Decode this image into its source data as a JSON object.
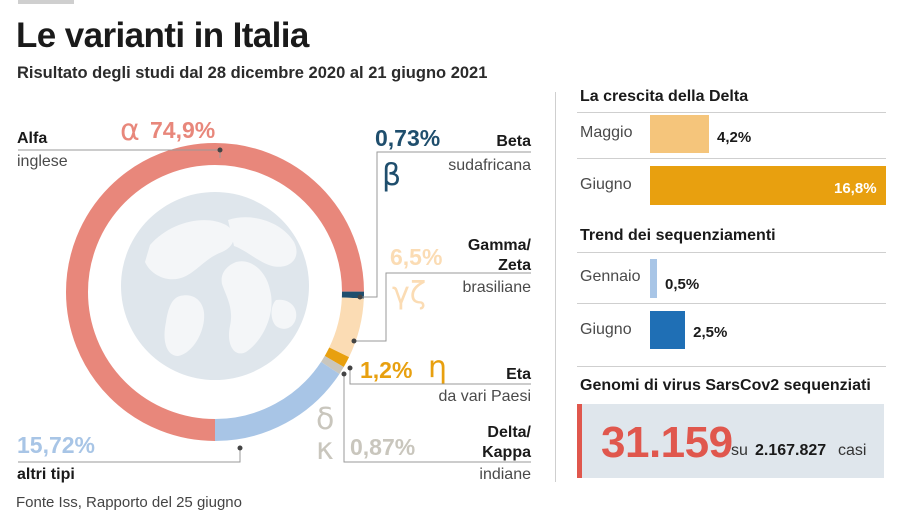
{
  "title": "Le varianti in Italia",
  "subtitle": "Risultato degli studi dal 28 dicembre 2020 al 21 giugno 2021",
  "footer": "Fonte Iss, Rapporto del 25 giugno",
  "colors": {
    "alfa": "#e8877b",
    "beta": "#1f4e6d",
    "gamma": "#fbdcb4",
    "eta": "#e8a00f",
    "delta": "#c9c6bd",
    "altri": "#a8c5e6",
    "delta_bar_light": "#f5c57b",
    "delta_bar_dark": "#e8a00f",
    "seq_light": "#a8c5e6",
    "seq_dark": "#1f6fb5",
    "accent_red": "#e0574d"
  },
  "variants": {
    "alfa": {
      "name": "Alfa",
      "origin": "inglese",
      "pct": "74,9%",
      "greek": "α"
    },
    "beta": {
      "name": "Beta",
      "origin": "sudafricana",
      "pct": "0,73%",
      "greek": "β"
    },
    "gamma": {
      "name": "Gamma/",
      "name2": "Zeta",
      "origin": "brasiliane",
      "pct": "6,5%",
      "greek": "γζ"
    },
    "eta": {
      "name": "Eta",
      "origin": "da vari Paesi",
      "pct": "1,2%",
      "greek": "η"
    },
    "delta": {
      "name": "Delta/",
      "name2": "Kappa",
      "origin": "indiane",
      "pct": "0,87%",
      "greek": "δ",
      "greek2": "κ"
    },
    "altri": {
      "name": "altri tipi",
      "pct": "15,72%"
    }
  },
  "chart_data": [
    {
      "type": "pie",
      "categories": [
        "Alfa",
        "Beta",
        "Gamma/Zeta",
        "Eta",
        "Delta/Kappa",
        "altri tipi"
      ],
      "values": [
        74.9,
        0.73,
        6.5,
        1.2,
        0.87,
        15.72
      ],
      "labels": [
        "74,9%",
        "0,73%",
        "6,5%",
        "1,2%",
        "0,87%",
        "15,72%"
      ]
    },
    {
      "type": "bar",
      "title": "La crescita della Delta",
      "categories": [
        "Maggio",
        "Giugno"
      ],
      "values": [
        4.2,
        16.8
      ],
      "labels": [
        "4,2%",
        "16,8%"
      ],
      "xlim": [
        0,
        16.8
      ]
    },
    {
      "type": "bar",
      "title": "Trend dei sequenziamenti",
      "categories": [
        "Gennaio",
        "Giugno"
      ],
      "values": [
        0.5,
        2.5
      ],
      "labels": [
        "0,5%",
        "2,5%"
      ],
      "xlim": [
        0,
        16.8
      ]
    }
  ],
  "genomes": {
    "title": "Genomi di virus SarsCov2 sequenziati",
    "number": "31.159",
    "su": "su",
    "total": "2.167.827",
    "casi": "casi"
  }
}
